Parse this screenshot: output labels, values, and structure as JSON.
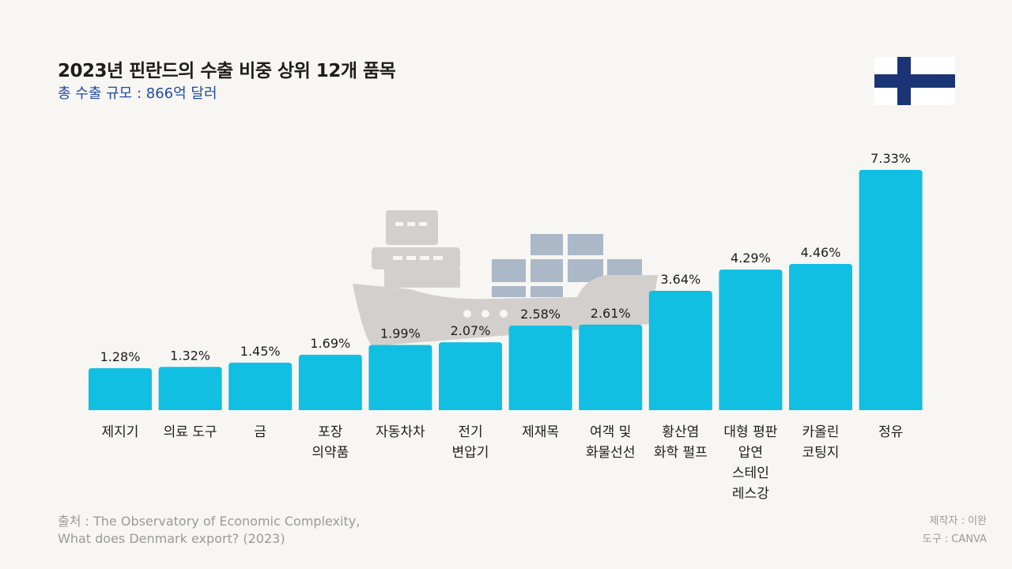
{
  "header": {
    "title": "2023년 핀란드의 수출 비중 상위 12개 품목",
    "subtitle": "총 수출 규모 : 866억 달러"
  },
  "colors": {
    "bar": "#10bfe2",
    "ship": "#d3cfcd",
    "containers": "#aab8c7",
    "flag_cross": "#1a3476",
    "flag_field": "#ffffff",
    "subtitle": "#1f4aa3"
  },
  "icons": [
    "finland-flag-icon",
    "cargo-ship-icon"
  ],
  "chart_data": {
    "type": "bar",
    "title": "2023년 핀란드의 수출 비중 상위 12개 품목",
    "subtitle": "총 수출 규모 : 866억 달러",
    "categories": [
      "제지기",
      "의료 도구",
      "금",
      "포장\n의약품",
      "자동차차",
      "전기\n변압기",
      "제재목",
      "여객 및\n화물선선",
      "황산염\n화학 펄프",
      "대형 평판\n압연\n스테인\n레스강",
      "카올린\n코팅지",
      "정유"
    ],
    "values": [
      1.28,
      1.32,
      1.45,
      1.69,
      1.99,
      2.07,
      2.58,
      2.61,
      3.64,
      4.29,
      4.46,
      7.33
    ],
    "data_labels": [
      "1.28%",
      "1.32%",
      "1.45%",
      "1.69%",
      "1.99%",
      "2.07%",
      "2.58%",
      "2.61%",
      "3.64%",
      "4.29%",
      "4.46%",
      "7.33%"
    ],
    "unit": "%",
    "ylim": [
      0,
      7.33
    ],
    "grid": false,
    "legend": "none"
  },
  "footer": {
    "source": "출처 : The Observatory of Economic Complexity,\nWhat does Denmark export? (2023)",
    "maker": "제작자 : 이완",
    "tool": "도구 : CANVA"
  }
}
